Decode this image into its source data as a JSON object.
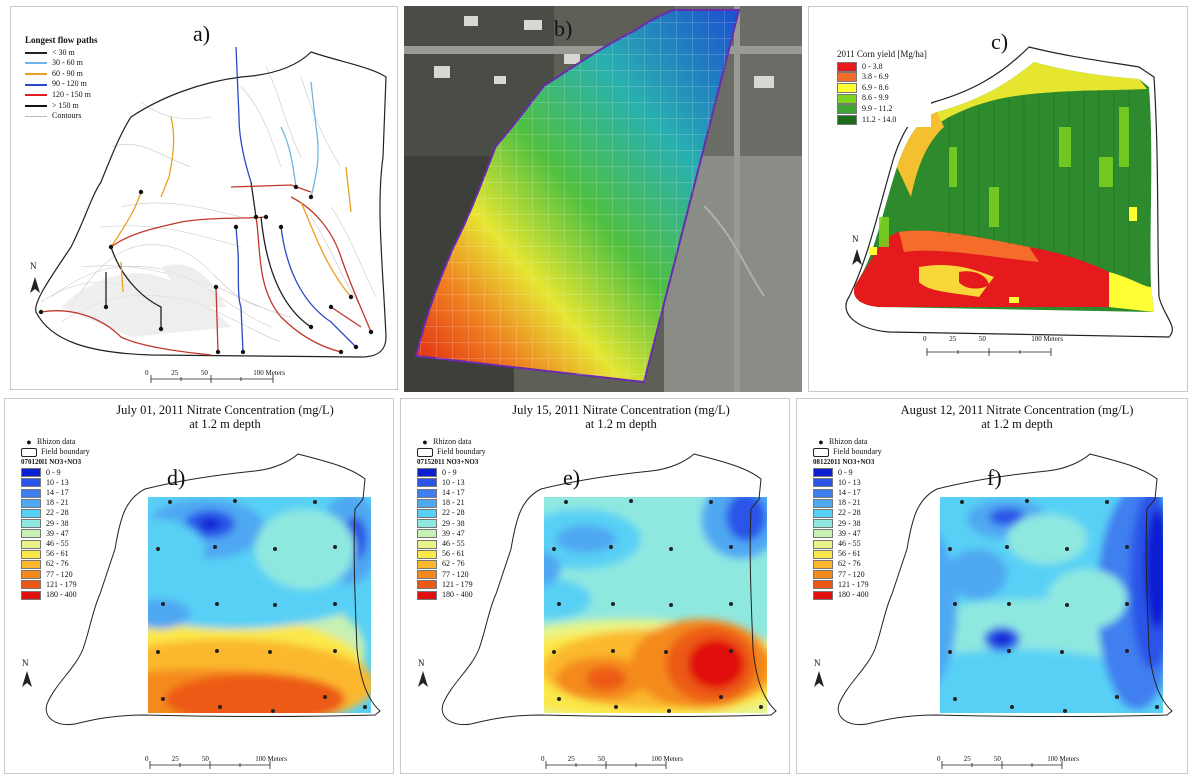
{
  "panels": {
    "a": {
      "label": "a)",
      "legend_title": "Longest flow paths",
      "legend_items": [
        {
          "label": "< 30 m",
          "color": "#222222"
        },
        {
          "label": "30 - 60 m",
          "color": "#6fb6e6"
        },
        {
          "label": "60 - 90 m",
          "color": "#e8a020"
        },
        {
          "label": "90 - 120 m",
          "color": "#2a48c8"
        },
        {
          "label": "120 - 150 m",
          "color": "#e02020"
        },
        {
          "label": "> 150 m",
          "color": "#111111"
        },
        {
          "label": "Contours",
          "color": "#bbbbbb"
        }
      ],
      "north": "N",
      "scale_ticks": [
        "0",
        "25",
        "50",
        "",
        "100 Meters"
      ]
    },
    "b": {
      "label": "b)"
    },
    "c": {
      "label": "c)",
      "legend_title": "2011 Corn yield [Mg/ha]",
      "legend_items": [
        {
          "label": "0 - 3.8",
          "color": "#e41a1c"
        },
        {
          "label": "3.8 - 6.9",
          "color": "#f46d2a"
        },
        {
          "label": "6.9 - 8.6",
          "color": "#ffff33"
        },
        {
          "label": "8.6 - 9.9",
          "color": "#7ed321"
        },
        {
          "label": "9.9 - 11.2",
          "color": "#3fa535"
        },
        {
          "label": "11.2 - 14.0",
          "color": "#1a6e1a"
        }
      ],
      "north": "N",
      "scale_ticks": [
        "0",
        "25",
        "50",
        "",
        "100 Meters"
      ]
    },
    "d": {
      "label": "d)",
      "title": "July 01, 2011 Nitrate Concentration (mg/L)",
      "subtitle": "at 1.2 m depth",
      "legend_point": "Rhizon data",
      "legend_boundary": "Field boundary",
      "legend_header": "070120l1 NO3+NO3",
      "north": "N",
      "scale_ticks": [
        "0",
        "25",
        "50",
        "",
        "100 Meters"
      ]
    },
    "e": {
      "label": "e)",
      "title": "July 15, 2011 Nitrate Concentration (mg/L)",
      "subtitle": "at 1.2 m depth",
      "legend_point": "Rhizon data",
      "legend_boundary": "Field boundary",
      "legend_header": "07152011 NO3+NO3",
      "north": "N",
      "scale_ticks": [
        "0",
        "25",
        "50",
        "",
        "100 Meters"
      ]
    },
    "f": {
      "label": "f)",
      "title": "August 12, 2011 Nitrate Concentration (mg/L)",
      "subtitle": "at 1.2 m depth",
      "legend_point": "Rhizon data",
      "legend_boundary": "Field boundary",
      "legend_header": "08122011 NO3+NO3",
      "north": "N",
      "scale_ticks": [
        "0",
        "25",
        "50",
        "",
        "100 Meters"
      ]
    }
  },
  "nitrate_classes": [
    {
      "label": "0 - 9",
      "color": "#0a1fd0"
    },
    {
      "label": "10 - 13",
      "color": "#2a55e8"
    },
    {
      "label": "14 - 17",
      "color": "#3f7fef"
    },
    {
      "label": "18 - 21",
      "color": "#4fa8f2"
    },
    {
      "label": "22 - 28",
      "color": "#58d0f5"
    },
    {
      "label": "29 - 38",
      "color": "#8fe8e0"
    },
    {
      "label": "39 - 47",
      "color": "#c6f0b4"
    },
    {
      "label": "46 - 55",
      "color": "#e8f48a"
    },
    {
      "label": "56 - 61",
      "color": "#fbe84a"
    },
    {
      "label": "62 - 76",
      "color": "#fbb82e"
    },
    {
      "label": "77 - 120",
      "color": "#f48a1e"
    },
    {
      "label": "121 - 179",
      "color": "#ec5a16"
    },
    {
      "label": "180 - 400",
      "color": "#e01010"
    }
  ]
}
